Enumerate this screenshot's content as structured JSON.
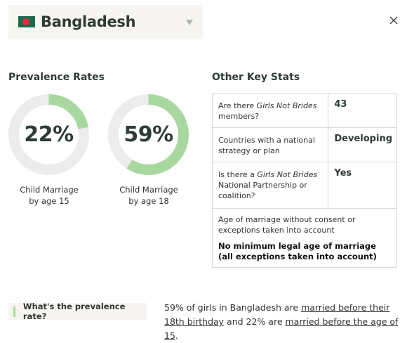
{
  "header": {
    "country": "Bangladesh",
    "flag": {
      "field_color": "#1b6b4a",
      "disc_color": "#e5283f"
    }
  },
  "prevalence": {
    "title": "Prevalence Rates",
    "ring_color": "#a8d8a0",
    "track_color": "#ececec",
    "rates": [
      {
        "value": "22%",
        "fraction": 0.22,
        "label_line1": "Child Marriage",
        "label_line2": "by age 15"
      },
      {
        "value": "59%",
        "fraction": 0.59,
        "label_line1": "Child Marriage",
        "label_line2": "by age 18"
      }
    ]
  },
  "stats": {
    "title": "Other Key Stats",
    "rows": [
      {
        "q_pre": "Are there ",
        "q_em": "Girls Not Brides",
        "q_post": " members?",
        "answer": "43"
      },
      {
        "q_pre": "Countries with a national strategy or plan",
        "q_em": "",
        "q_post": "",
        "answer": "Developing"
      },
      {
        "q_pre": "Is there a ",
        "q_em": "Girls Not Brides",
        "q_post": " National Partnership or coalition?",
        "answer": "Yes"
      }
    ],
    "full_row": {
      "question": "Age of marriage without consent or exceptions taken into account",
      "answer": "No minimum legal age of marriage (all exceptions taken into account)"
    }
  },
  "faq": {
    "question": "What's the prevalence rate?",
    "answer_part1": "59% of girls in Bangladesh are ",
    "link1": "married before their 18th birthday",
    "answer_part2": " and 22% are ",
    "link2": "married before the age of 15",
    "answer_part3": "."
  }
}
